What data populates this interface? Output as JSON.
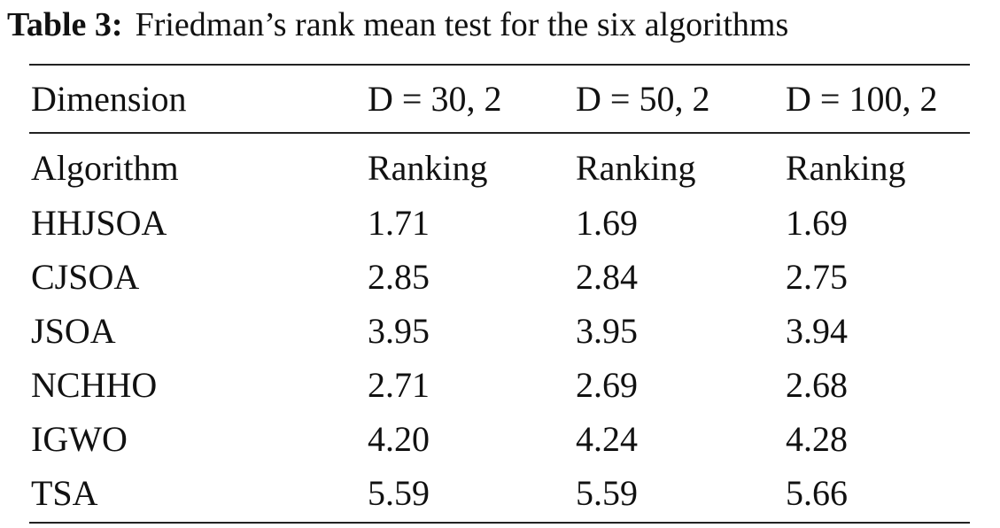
{
  "title": {
    "label": "Table 3:",
    "text": "Friedman’s rank mean test for the six algorithms"
  },
  "table": {
    "header": [
      "Dimension",
      "D = 30, 2",
      "D = 50, 2",
      "D = 100, 2"
    ],
    "subheader": [
      "Algorithm",
      "Ranking",
      "Ranking",
      "Ranking"
    ],
    "rows": [
      [
        "HHJSOA",
        "1.71",
        "1.69",
        "1.69"
      ],
      [
        "CJSOA",
        "2.85",
        "2.84",
        "2.75"
      ],
      [
        "JSOA",
        "3.95",
        "3.95",
        "3.94"
      ],
      [
        "NCHHO",
        "2.71",
        "2.69",
        "2.68"
      ],
      [
        "IGWO",
        "4.20",
        "4.24",
        "4.28"
      ],
      [
        "TSA",
        "5.59",
        "5.59",
        "5.66"
      ]
    ]
  }
}
